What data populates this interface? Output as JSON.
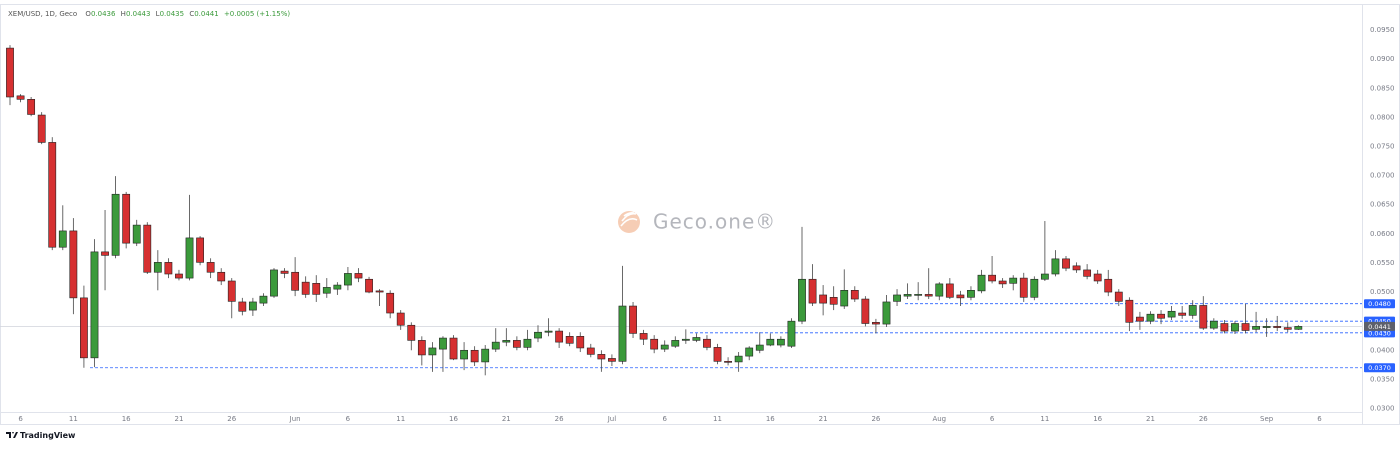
{
  "chart_data": {
    "type": "candlestick",
    "title": "XEM/USD, 1D, Geco",
    "ohlc_legend": [
      {
        "key": "O",
        "value": "0.0436"
      },
      {
        "key": "H",
        "value": "0.0443"
      },
      {
        "key": "L",
        "value": "0.0435"
      },
      {
        "key": "C",
        "value": "0.0441"
      }
    ],
    "change": "+0.0005 (+1.15%)",
    "watermark": "Geco.one®",
    "brand": "TradingView",
    "categories": [
      null,
      "6",
      null,
      null,
      null,
      null,
      "11",
      null,
      null,
      null,
      null,
      "16",
      null,
      null,
      null,
      null,
      "21",
      null,
      null,
      null,
      null,
      "26",
      null,
      null,
      null,
      null,
      null,
      "Jun",
      null,
      null,
      null,
      null,
      "6",
      null,
      null,
      null,
      null,
      "11",
      null,
      null,
      null,
      null,
      "16",
      null,
      null,
      null,
      null,
      "21",
      null,
      null,
      null,
      null,
      "26",
      null,
      null,
      null,
      null,
      "Jul",
      null,
      null,
      null,
      null,
      "6",
      null,
      null,
      null,
      null,
      "11",
      null,
      null,
      null,
      null,
      "16",
      null,
      null,
      null,
      null,
      "21",
      null,
      null,
      null,
      null,
      "26",
      null,
      null,
      null,
      null,
      null,
      "Aug",
      null,
      null,
      null,
      null,
      "6",
      null,
      null,
      null,
      null,
      "11",
      null,
      null,
      null,
      null,
      "16",
      null,
      null,
      null,
      null,
      "21",
      null,
      null,
      null,
      null,
      "26",
      null,
      null,
      null,
      null,
      null,
      "Sep",
      null,
      null,
      null,
      null,
      "6"
    ],
    "open": [
      0.0919,
      0.0837,
      0.0831,
      0.0804,
      0.0757,
      0.0577,
      0.0605,
      0.049,
      0.0387,
      0.0569,
      0.0563,
      0.0668,
      0.0584,
      0.0615,
      0.0534,
      0.0551,
      0.0531,
      0.0524,
      0.0593,
      0.0551,
      0.0534,
      0.0519,
      0.0483,
      0.0469,
      0.0481,
      0.0493,
      0.0536,
      0.0534,
      0.0517,
      0.0515,
      0.0498,
      0.0505,
      0.0512,
      0.0532,
      0.0522,
      0.0502,
      0.0498,
      0.0464,
      0.0443,
      0.0417,
      0.0392,
      0.0402,
      0.0421,
      0.0385,
      0.04,
      0.038,
      0.0402,
      0.0414,
      0.0417,
      0.0405,
      0.0421,
      0.0431,
      0.0433,
      0.0424,
      0.0424,
      0.0404,
      0.0393,
      0.0386,
      0.0381,
      0.0476,
      0.0429,
      0.0419,
      0.0402,
      0.0407,
      0.0417,
      0.0417,
      0.0419,
      0.0405,
      0.0381,
      0.038,
      0.039,
      0.04,
      0.0409,
      0.0409,
      0.0407,
      0.045,
      0.0522,
      0.0495,
      0.0491,
      0.0476,
      0.0503,
      0.0488,
      0.0448,
      0.0445,
      0.0484,
      0.0493,
      0.0495,
      0.0496,
      0.0493,
      0.0514,
      0.0495,
      0.0491,
      0.0502,
      0.0529,
      0.0519,
      0.0515,
      0.0524,
      0.0491,
      0.0522,
      0.0531,
      0.0557,
      0.0545,
      0.0538,
      0.0531,
      0.0522,
      0.05,
      0.0486,
      0.0457,
      0.045,
      0.0462,
      0.0457,
      0.0464,
      0.046,
      0.0477,
      0.0438,
      0.0446,
      0.0433,
      0.0446,
      0.0436,
      0.0439,
      0.0441,
      0.0439,
      0.0436,
      null,
      null
    ],
    "high": [
      0.0924,
      0.084,
      0.0835,
      0.0809,
      0.0766,
      0.0649,
      0.0627,
      0.0511,
      0.0591,
      0.0641,
      0.0699,
      0.0672,
      0.0624,
      0.062,
      0.0572,
      0.0558,
      0.0538,
      0.0667,
      0.0596,
      0.0558,
      0.0541,
      0.0524,
      0.049,
      0.049,
      0.0498,
      0.0541,
      0.0541,
      0.056,
      0.0527,
      0.0529,
      0.0524,
      0.0517,
      0.0543,
      0.0541,
      0.0526,
      0.0505,
      0.0503,
      0.0469,
      0.0448,
      0.0424,
      0.0414,
      0.0424,
      0.0426,
      0.0414,
      0.0407,
      0.0409,
      0.0438,
      0.0438,
      0.0424,
      0.0435,
      0.0443,
      0.0455,
      0.0438,
      0.0431,
      0.0431,
      0.0411,
      0.04,
      0.0393,
      0.0545,
      0.0483,
      0.0435,
      0.0426,
      0.0417,
      0.0424,
      0.0436,
      0.0429,
      0.0426,
      0.0411,
      0.0388,
      0.0397,
      0.0407,
      0.0431,
      0.0429,
      0.0424,
      0.0455,
      0.0612,
      0.0548,
      0.0512,
      0.051,
      0.0539,
      0.051,
      0.0493,
      0.0454,
      0.0495,
      0.0505,
      0.0515,
      0.0517,
      0.0541,
      0.0517,
      0.0524,
      0.0502,
      0.051,
      0.0538,
      0.0562,
      0.0524,
      0.0529,
      0.0533,
      0.0527,
      0.0622,
      0.0572,
      0.0562,
      0.0551,
      0.0548,
      0.0538,
      0.0538,
      0.0505,
      0.0491,
      0.0466,
      0.0467,
      0.0469,
      0.0476,
      0.0476,
      0.0486,
      0.0493,
      0.0455,
      0.0452,
      0.045,
      0.048,
      0.0466,
      0.0455,
      0.0459,
      0.0448,
      0.0443,
      null,
      null
    ],
    "low": [
      0.0821,
      0.0826,
      0.0802,
      0.0754,
      0.0572,
      0.0572,
      0.0462,
      0.037,
      0.0371,
      0.0503,
      0.0558,
      0.0575,
      0.0579,
      0.0531,
      0.0503,
      0.0524,
      0.052,
      0.052,
      0.0546,
      0.0524,
      0.0512,
      0.0455,
      0.046,
      0.0459,
      0.0476,
      0.049,
      0.0524,
      0.0493,
      0.049,
      0.0483,
      0.049,
      0.0495,
      0.0503,
      0.0517,
      0.0498,
      0.0476,
      0.0455,
      0.0435,
      0.04,
      0.0374,
      0.0363,
      0.0363,
      0.0383,
      0.0366,
      0.0373,
      0.0357,
      0.0397,
      0.0407,
      0.04,
      0.04,
      0.0414,
      0.0424,
      0.0404,
      0.0407,
      0.0397,
      0.0388,
      0.0363,
      0.0373,
      0.0376,
      0.0421,
      0.0409,
      0.0395,
      0.0397,
      0.0404,
      0.0411,
      0.0414,
      0.04,
      0.0376,
      0.0374,
      0.0363,
      0.0383,
      0.0395,
      0.0407,
      0.0405,
      0.0404,
      0.0445,
      0.0476,
      0.046,
      0.0469,
      0.0471,
      0.0483,
      0.0441,
      0.0429,
      0.044,
      0.0476,
      0.0488,
      0.0486,
      0.0488,
      0.0486,
      0.0488,
      0.0476,
      0.0486,
      0.0498,
      0.0515,
      0.0507,
      0.0503,
      0.0483,
      0.0486,
      0.0519,
      0.0527,
      0.0536,
      0.0533,
      0.0522,
      0.0514,
      0.0493,
      0.0476,
      0.0433,
      0.0435,
      0.0445,
      0.0445,
      0.0452,
      0.0454,
      0.0454,
      0.0435,
      0.0435,
      0.0429,
      0.0428,
      0.0429,
      0.0431,
      0.0423,
      0.0433,
      0.0431,
      0.0435,
      null,
      null
    ],
    "close": [
      0.0835,
      0.0831,
      0.0805,
      0.0757,
      0.0577,
      0.0605,
      0.049,
      0.0387,
      0.0569,
      0.0563,
      0.0668,
      0.0584,
      0.0615,
      0.0534,
      0.0551,
      0.0531,
      0.0524,
      0.0593,
      0.0551,
      0.0534,
      0.0519,
      0.0484,
      0.0467,
      0.0483,
      0.0493,
      0.0538,
      0.0532,
      0.0503,
      0.0496,
      0.0496,
      0.0508,
      0.0512,
      0.0532,
      0.0524,
      0.05,
      0.05,
      0.0464,
      0.0443,
      0.0417,
      0.0392,
      0.0404,
      0.0421,
      0.0385,
      0.04,
      0.038,
      0.0402,
      0.0414,
      0.0417,
      0.0405,
      0.0419,
      0.0431,
      0.0433,
      0.0414,
      0.0412,
      0.0404,
      0.0393,
      0.0385,
      0.0381,
      0.0476,
      0.0429,
      0.0419,
      0.0402,
      0.0409,
      0.0417,
      0.0419,
      0.0422,
      0.0405,
      0.0381,
      0.038,
      0.039,
      0.0404,
      0.0409,
      0.0419,
      0.0419,
      0.045,
      0.0522,
      0.0481,
      0.0481,
      0.0479,
      0.0503,
      0.0488,
      0.0446,
      0.0445,
      0.0483,
      0.0495,
      0.0496,
      0.0496,
      0.0493,
      0.0514,
      0.0491,
      0.049,
      0.0503,
      0.0529,
      0.0519,
      0.0514,
      0.0524,
      0.0491,
      0.0522,
      0.0531,
      0.0557,
      0.0541,
      0.0538,
      0.0527,
      0.0519,
      0.05,
      0.0484,
      0.0448,
      0.045,
      0.0462,
      0.0455,
      0.0467,
      0.046,
      0.0477,
      0.0438,
      0.045,
      0.0433,
      0.0446,
      0.0434,
      0.0441,
      0.0441,
      0.0439,
      0.0436,
      0.0441,
      null,
      null
    ],
    "up_color": "#3b9a3b",
    "down_color": "#d63031",
    "ylim": [
      0.0294,
      0.0993
    ],
    "yticks": [
      {
        "value": 0.03,
        "label": "0.0300"
      },
      {
        "value": 0.035,
        "label": "0.0350"
      },
      {
        "value": 0.04,
        "label": "0.0400"
      },
      {
        "value": 0.045,
        "label": "0.0450"
      },
      {
        "value": 0.05,
        "label": "0.0500"
      },
      {
        "value": 0.055,
        "label": "0.0550"
      },
      {
        "value": 0.06,
        "label": "0.0600"
      },
      {
        "value": 0.065,
        "label": "0.0650"
      },
      {
        "value": 0.07,
        "label": "0.0700"
      },
      {
        "value": 0.075,
        "label": "0.0750"
      },
      {
        "value": 0.08,
        "label": "0.0800"
      },
      {
        "value": 0.085,
        "label": "0.0850"
      },
      {
        "value": 0.09,
        "label": "0.0900"
      },
      {
        "value": 0.095,
        "label": "0.0950"
      }
    ],
    "grid": false,
    "levels": [
      {
        "value": 0.048,
        "label": "0.0480"
      },
      {
        "value": 0.045,
        "label": "0.0450"
      },
      {
        "value": 0.043,
        "label": "0.0430"
      },
      {
        "value": 0.037,
        "label": "0.0370"
      }
    ],
    "level_color": "#2962ff",
    "last_price": {
      "value": 0.0441,
      "label": "0.0441"
    },
    "last_price_color": "#5d606b"
  }
}
